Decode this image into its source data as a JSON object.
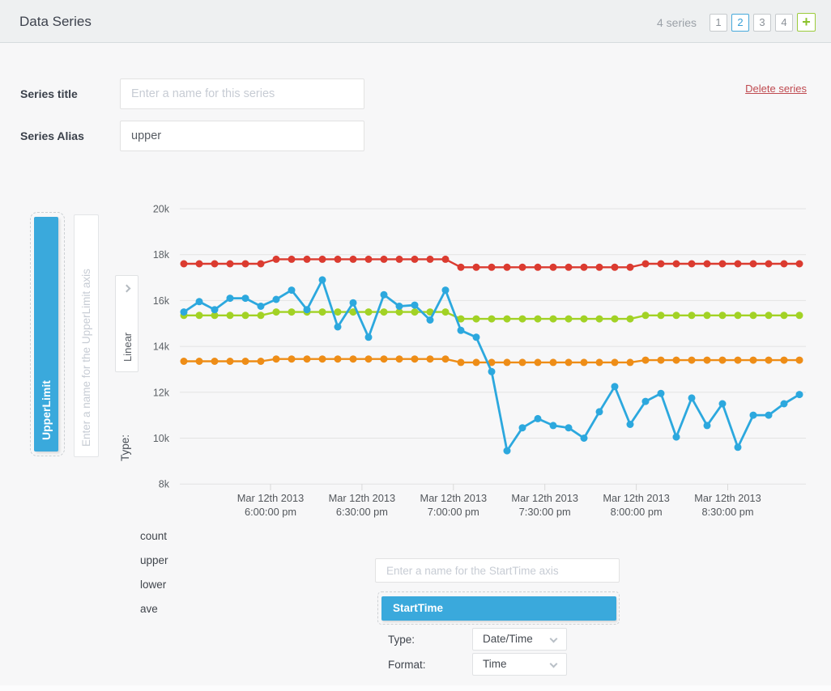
{
  "header": {
    "title": "Data Series",
    "series_count": "4 series",
    "pager": [
      "1",
      "2",
      "3",
      "4"
    ],
    "active_page": "2",
    "add_label": "+"
  },
  "form": {
    "title_label": "Series title",
    "title_placeholder": "Enter a name for this series",
    "alias_label": "Series Alias",
    "alias_value": "upper",
    "delete_label": "Delete series"
  },
  "y_axis_panel": {
    "series_button": "UpperLimit",
    "axis_name_placeholder": "Enter a name for the UpperLimit axis",
    "scale_button": "Linear",
    "type_label": "Type:"
  },
  "series_list": [
    "count",
    "upper",
    "lower",
    "ave"
  ],
  "x_axis_panel": {
    "axis_name_placeholder": "Enter a name for the StartTime axis",
    "axis_button": "StartTime",
    "type_label": "Type:",
    "type_value": "Date/Time",
    "format_label": "Format:",
    "format_value": "Time"
  },
  "colors": {
    "accent_blue": "#3aa9dc",
    "add_green": "#8bc22c",
    "delete_red": "#bf4a50",
    "grid": "#e3e3e3",
    "axis_text": "#5c6166"
  },
  "chart_data": {
    "type": "line",
    "title": "",
    "xlabel": "",
    "ylabel": "",
    "ylim": [
      8000,
      20000
    ],
    "grid": true,
    "legend_position": "none",
    "y_tick_labels": [
      "20k",
      "18k",
      "16k",
      "14k",
      "12k",
      "10k",
      "8k"
    ],
    "y_tick_values": [
      20000,
      18000,
      16000,
      14000,
      12000,
      10000,
      8000
    ],
    "x_ticks": [
      {
        "date": "Mar 12th 2013",
        "time": "6:00:00 pm"
      },
      {
        "date": "Mar 12th 2013",
        "time": "6:30:00 pm"
      },
      {
        "date": "Mar 12th 2013",
        "time": "7:00:00 pm"
      },
      {
        "date": "Mar 12th 2013",
        "time": "7:30:00 pm"
      },
      {
        "date": "Mar 12th 2013",
        "time": "8:00:00 pm"
      },
      {
        "date": "Mar 12th 2013",
        "time": "8:30:00 pm"
      }
    ],
    "series": [
      {
        "name": "upper",
        "color": "#db3b30",
        "values": [
          17600,
          17600,
          17600,
          17600,
          17600,
          17600,
          17800,
          17800,
          17800,
          17800,
          17800,
          17800,
          17800,
          17800,
          17800,
          17800,
          17800,
          17800,
          17450,
          17450,
          17450,
          17450,
          17450,
          17450,
          17450,
          17450,
          17450,
          17450,
          17450,
          17450,
          17600,
          17600,
          17600,
          17600,
          17600,
          17600,
          17600,
          17600,
          17600,
          17600,
          17600
        ]
      },
      {
        "name": "lower",
        "color": "#ee8d17",
        "values": [
          13350,
          13350,
          13350,
          13350,
          13350,
          13350,
          13450,
          13450,
          13450,
          13450,
          13450,
          13450,
          13450,
          13450,
          13450,
          13450,
          13450,
          13450,
          13300,
          13300,
          13300,
          13300,
          13300,
          13300,
          13300,
          13300,
          13300,
          13300,
          13300,
          13300,
          13400,
          13400,
          13400,
          13400,
          13400,
          13400,
          13400,
          13400,
          13400,
          13400,
          13400
        ]
      },
      {
        "name": "ave",
        "color": "#a2d225",
        "values": [
          15350,
          15350,
          15350,
          15350,
          15350,
          15350,
          15500,
          15500,
          15500,
          15500,
          15500,
          15500,
          15500,
          15500,
          15500,
          15500,
          15500,
          15500,
          15200,
          15200,
          15200,
          15200,
          15200,
          15200,
          15200,
          15200,
          15200,
          15200,
          15200,
          15200,
          15350,
          15350,
          15350,
          15350,
          15350,
          15350,
          15350,
          15350,
          15350,
          15350,
          15350
        ]
      },
      {
        "name": "count",
        "color": "#2ca8de",
        "values": [
          15500,
          15950,
          15600,
          16100,
          16100,
          15750,
          16050,
          16450,
          15600,
          16900,
          14850,
          15900,
          14400,
          16250,
          15750,
          15800,
          15150,
          16450,
          14700,
          14400,
          12900,
          9450,
          10450,
          10850,
          10550,
          10450,
          10000,
          11150,
          12250,
          10600,
          11600,
          11950,
          10050,
          11750,
          10550,
          11500,
          9600,
          11000,
          11000,
          11500,
          11900
        ]
      }
    ]
  }
}
